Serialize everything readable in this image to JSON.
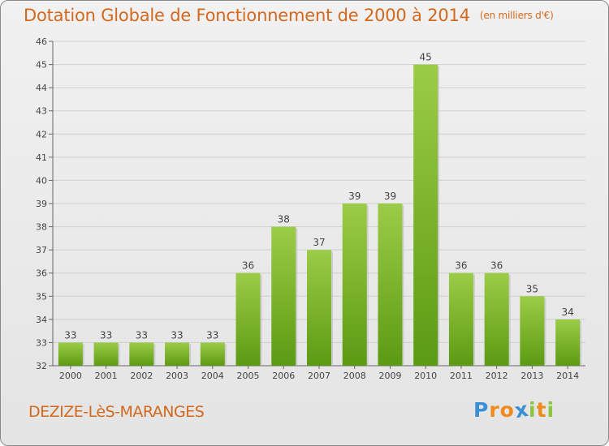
{
  "header": {
    "title": "Dotation Globale de Fonctionnement de 2000 à 2014",
    "unit": "(en milliers d'€)"
  },
  "footer": {
    "commune": "DEZIZE-LèS-MARANGES",
    "logo_letters": [
      {
        "char": "P",
        "color": "#3b8fd4"
      },
      {
        "char": "r",
        "color": "#f08a1c"
      },
      {
        "char": "o",
        "color": "#f08a1c"
      },
      {
        "char": "x",
        "color": "#3b8fd4"
      },
      {
        "char": "i",
        "color": "#8cc63f"
      },
      {
        "char": "t",
        "color": "#f08a1c"
      },
      {
        "char": "i",
        "color": "#8cc63f"
      }
    ]
  },
  "chart_data": {
    "type": "bar",
    "categories": [
      "2000",
      "2001",
      "2002",
      "2003",
      "2004",
      "2005",
      "2006",
      "2007",
      "2008",
      "2009",
      "2010",
      "2011",
      "2012",
      "2013",
      "2014"
    ],
    "values": [
      33,
      33,
      33,
      33,
      33,
      36,
      38,
      37,
      39,
      39,
      45,
      36,
      36,
      35,
      34
    ],
    "ylim": [
      32,
      46
    ],
    "yticks": [
      32,
      33,
      34,
      35,
      36,
      37,
      38,
      39,
      40,
      41,
      42,
      43,
      44,
      45,
      46
    ],
    "grid": "horizontal",
    "colors": {
      "bar_top": "#9ccc47",
      "bar_bottom": "#5c9a13",
      "label": "#444444"
    }
  }
}
